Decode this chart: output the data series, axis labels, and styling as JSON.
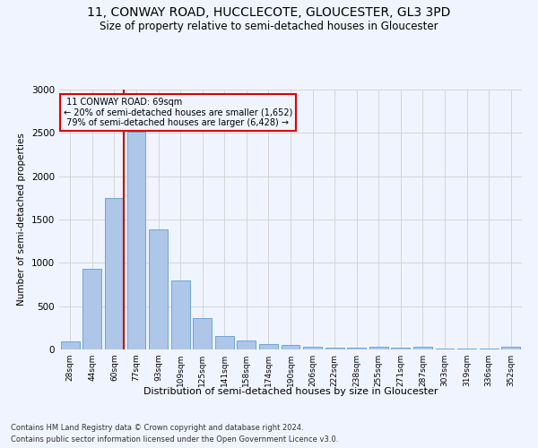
{
  "title1": "11, CONWAY ROAD, HUCCLECOTE, GLOUCESTER, GL3 3PD",
  "title2": "Size of property relative to semi-detached houses in Gloucester",
  "xlabel": "Distribution of semi-detached houses by size in Gloucester",
  "ylabel": "Number of semi-detached properties",
  "footer1": "Contains HM Land Registry data © Crown copyright and database right 2024.",
  "footer2": "Contains public sector information licensed under the Open Government Licence v3.0.",
  "categories": [
    "28sqm",
    "44sqm",
    "60sqm",
    "77sqm",
    "93sqm",
    "109sqm",
    "125sqm",
    "141sqm",
    "158sqm",
    "174sqm",
    "190sqm",
    "206sqm",
    "222sqm",
    "238sqm",
    "255sqm",
    "271sqm",
    "287sqm",
    "303sqm",
    "319sqm",
    "336sqm",
    "352sqm"
  ],
  "values": [
    95,
    930,
    1750,
    2510,
    1390,
    800,
    360,
    160,
    100,
    62,
    55,
    35,
    25,
    20,
    30,
    25,
    30,
    15,
    10,
    8,
    28
  ],
  "bar_color": "#aec6e8",
  "bar_edge_color": "#5a9fd4",
  "property_bin_index": 2,
  "property_label": "11 CONWAY ROAD: 69sqm",
  "smaller_pct": "20%",
  "smaller_count": "1,652",
  "larger_pct": "79%",
  "larger_count": "6,428",
  "annotation_box_color": "#dd0000",
  "vline_color": "#cc0000",
  "ylim": [
    0,
    3000
  ],
  "yticks": [
    0,
    500,
    1000,
    1500,
    2000,
    2500,
    3000
  ],
  "grid_color": "#d0d0d0",
  "background_color": "#f0f4ff",
  "title1_fontsize": 10,
  "title2_fontsize": 8.5,
  "bar_width": 0.85
}
